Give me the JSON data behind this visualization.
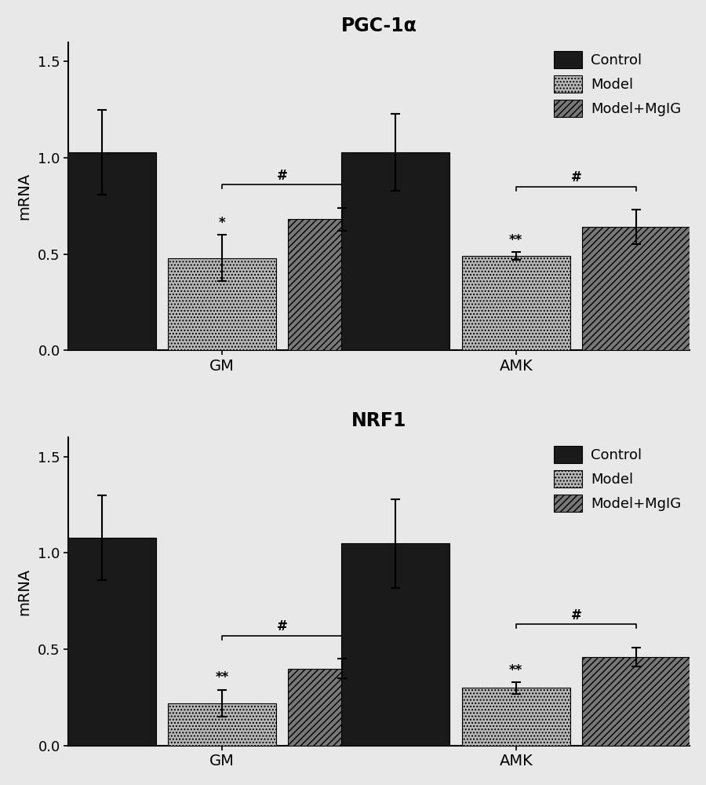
{
  "chart1": {
    "title": "PGC-1α",
    "groups": [
      "GM",
      "AMK"
    ],
    "categories": [
      "Control",
      "Model",
      "Model+MgIG"
    ],
    "values": {
      "GM": [
        1.03,
        0.48,
        0.68
      ],
      "AMK": [
        1.03,
        0.49,
        0.64
      ]
    },
    "errors": {
      "GM": [
        0.22,
        0.12,
        0.06
      ],
      "AMK": [
        0.2,
        0.02,
        0.09
      ]
    },
    "sig_model": {
      "GM": "*",
      "AMK": "**"
    },
    "sig_bracket": {
      "GM": "#",
      "AMK": "#"
    },
    "ylabel": "mRNA",
    "ylim": [
      0,
      1.6
    ],
    "yticks": [
      0.0,
      0.5,
      1.0,
      1.5
    ]
  },
  "chart2": {
    "title": "NRF1",
    "groups": [
      "GM",
      "AMK"
    ],
    "categories": [
      "Control",
      "Model",
      "Model+MgIG"
    ],
    "values": {
      "GM": [
        1.08,
        0.22,
        0.4
      ],
      "AMK": [
        1.05,
        0.3,
        0.46
      ]
    },
    "errors": {
      "GM": [
        0.22,
        0.07,
        0.05
      ],
      "AMK": [
        0.23,
        0.03,
        0.05
      ]
    },
    "sig_model": {
      "GM": "**",
      "AMK": "**"
    },
    "sig_bracket": {
      "GM": "#",
      "AMK": "#"
    },
    "ylabel": "mRNA",
    "ylim": [
      0,
      1.6
    ],
    "yticks": [
      0.0,
      0.5,
      1.0,
      1.5
    ]
  },
  "colors": {
    "Control": "#1a1a1a",
    "Model": "#b8b8b8",
    "Model+MgIG": "#787878"
  },
  "hatch": {
    "Control": "",
    "Model": "....",
    "Model+MgIG": "////"
  },
  "legend_labels": [
    "Control",
    "Model",
    "Model+MgIG"
  ],
  "background_color": "#e8e8e8"
}
